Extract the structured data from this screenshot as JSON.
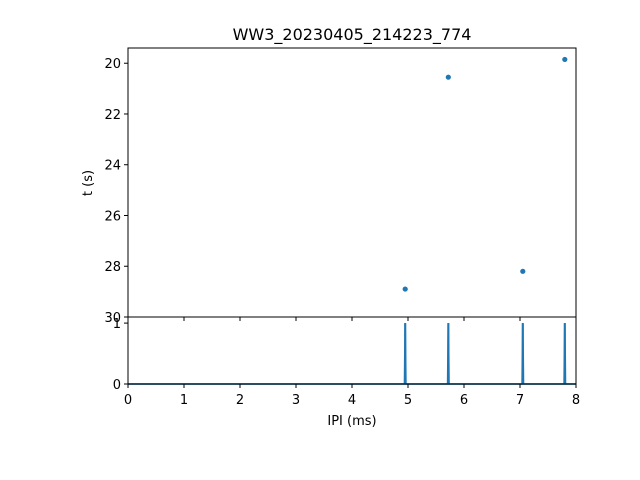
{
  "chart_data": [
    {
      "type": "scatter",
      "title": "WW3_20230405_214223_774",
      "xlabel": "",
      "ylabel": "t (s)",
      "xlim": [
        0,
        8
      ],
      "ylim": [
        30,
        19.4
      ],
      "y_inverted": true,
      "yticks": [
        20,
        22,
        24,
        26,
        28,
        30
      ],
      "x_tick_labels_shown": false,
      "color": "#1f77b4",
      "points": [
        {
          "x": 4.95,
          "y": 28.9
        },
        {
          "x": 5.72,
          "y": 20.55
        },
        {
          "x": 7.05,
          "y": 28.2
        },
        {
          "x": 7.8,
          "y": 19.85
        }
      ]
    },
    {
      "type": "line",
      "xlabel": "IPI (ms)",
      "ylabel": "",
      "xlim": [
        0,
        8
      ],
      "ylim": [
        0,
        1.1
      ],
      "xticks": [
        0,
        1,
        2,
        3,
        4,
        5,
        6,
        7,
        8
      ],
      "yticks": [
        0,
        1
      ],
      "color": "#1f77b4",
      "spikes": [
        4.95,
        5.72,
        7.05,
        7.8
      ],
      "spike_height": 1,
      "baseline": 0
    }
  ]
}
